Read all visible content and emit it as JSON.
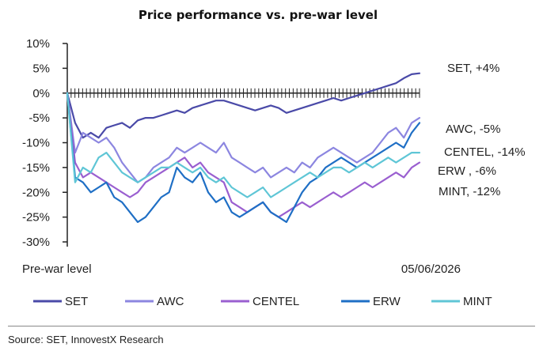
{
  "chart_data": {
    "type": "line",
    "title": "Price performance vs. pre-war level",
    "y_ticks": [
      "10%",
      "5%",
      "0%",
      "-5%",
      "-10%",
      "-15%",
      "-20%",
      "-25%",
      "-30%"
    ],
    "ylim": [
      -30,
      10
    ],
    "x_labels": {
      "start": "Pre-war level",
      "end": "05/06/2026"
    },
    "grid": false,
    "legend_position": "bottom",
    "series": [
      {
        "name": "SET",
        "color": "#4a4aa8",
        "end_label": "SET, +4%",
        "values": [
          0,
          -6,
          -9,
          -8,
          -9,
          -7,
          -6.5,
          -6,
          -7,
          -5.5,
          -5,
          -5,
          -4.5,
          -4,
          -3.5,
          -4,
          -3,
          -2.5,
          -2,
          -1.5,
          -1.5,
          -2,
          -2.5,
          -3,
          -3.5,
          -3,
          -2.5,
          -3,
          -4,
          -3.5,
          -3,
          -2.5,
          -2,
          -1.5,
          -1,
          -1.5,
          -1,
          -0.5,
          0,
          0.5,
          1,
          1.5,
          2,
          3,
          3.8,
          4
        ]
      },
      {
        "name": "AWC",
        "color": "#8c86e0",
        "end_label": "AWC, -5%",
        "values": [
          0,
          -12,
          -8,
          -9,
          -10,
          -9,
          -11,
          -14,
          -16,
          -18,
          -17,
          -15,
          -14,
          -13,
          -11,
          -12,
          -11,
          -10,
          -11,
          -12,
          -10,
          -13,
          -14,
          -15,
          -16,
          -15,
          -17,
          -16,
          -15,
          -16,
          -14,
          -15,
          -13,
          -12,
          -11,
          -12,
          -13,
          -14,
          -13,
          -12,
          -10,
          -8,
          -7,
          -9,
          -6,
          -5
        ]
      },
      {
        "name": "CENTEL",
        "color": "#9a5fd0",
        "end_label": "CENTEL, -14%",
        "values": [
          0,
          -14,
          -17,
          -16,
          -17,
          -18,
          -19,
          -20,
          -21,
          -20,
          -18,
          -17,
          -16,
          -15,
          -14,
          -13,
          -15,
          -14,
          -16,
          -17,
          -18,
          -22,
          -23,
          -24,
          -23,
          -22,
          -24,
          -25,
          -24,
          -23,
          -22,
          -23,
          -22,
          -21,
          -20,
          -21,
          -20,
          -19,
          -18,
          -19,
          -18,
          -17,
          -16,
          -17,
          -15,
          -14
        ]
      },
      {
        "name": "ERW",
        "color": "#1f6fc5",
        "end_label": "ERW , -6%",
        "values": [
          0,
          -17,
          -18,
          -20,
          -19,
          -18,
          -21,
          -22,
          -24,
          -26,
          -25,
          -23,
          -21,
          -20,
          -15,
          -17,
          -18,
          -16,
          -20,
          -22,
          -21,
          -24,
          -25,
          -24,
          -23,
          -22,
          -24,
          -25,
          -26,
          -23,
          -20,
          -18,
          -17,
          -15,
          -14,
          -13,
          -14,
          -15,
          -14,
          -13,
          -12,
          -11,
          -10,
          -11,
          -8,
          -6
        ]
      },
      {
        "name": "MINT",
        "color": "#5fc6d6",
        "end_label": "MINT, -12%",
        "values": [
          0,
          -18,
          -15,
          -16,
          -13,
          -12,
          -14,
          -16,
          -17,
          -18,
          -17,
          -16,
          -15,
          -15,
          -14,
          -15,
          -16,
          -15,
          -17,
          -18,
          -17,
          -19,
          -20,
          -21,
          -20,
          -19,
          -21,
          -20,
          -19,
          -18,
          -17,
          -16,
          -17,
          -16,
          -15,
          -15,
          -16,
          -15,
          -14,
          -15,
          -14,
          -13,
          -14,
          -13,
          -12,
          -12
        ]
      }
    ]
  },
  "source": "Source: SET, InnovestX Research"
}
